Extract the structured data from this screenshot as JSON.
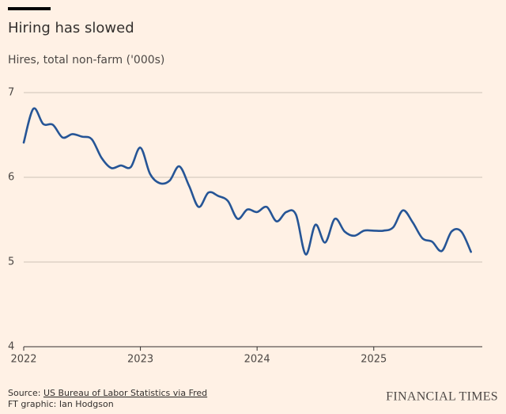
{
  "chart_data": {
    "type": "line",
    "title": "Hiring has slowed",
    "subtitle": "Hires, total non-farm ('000s)",
    "source_prefix": "Source: ",
    "source_link": "US Bureau of Labor Statistics via Fred",
    "credit": "FT graphic: Ian Hodgson",
    "brand": "FINANCIAL TIMES",
    "x": [
      2022,
      2022.083,
      2022.167,
      2022.25,
      2022.333,
      2022.417,
      2022.5,
      2022.583,
      2022.667,
      2022.75,
      2022.833,
      2022.917,
      2023,
      2023.083,
      2023.167,
      2023.25,
      2023.333,
      2023.417,
      2023.5,
      2023.583,
      2023.667,
      2023.75,
      2023.833,
      2023.917,
      2024,
      2024.083,
      2024.167,
      2024.25,
      2024.333,
      2024.417,
      2024.5,
      2024.583,
      2024.667,
      2024.75,
      2024.833,
      2024.917,
      2025,
      2025.083,
      2025.167,
      2025.25,
      2025.333,
      2025.417,
      2025.5,
      2025.583,
      2025.667,
      2025.75,
      2025.833
    ],
    "series": [
      {
        "name": "Hires",
        "color": "#265596",
        "values": [
          6.41,
          6.81,
          6.63,
          6.62,
          6.47,
          6.51,
          6.48,
          6.45,
          6.23,
          6.11,
          6.14,
          6.12,
          6.35,
          6.04,
          5.93,
          5.96,
          6.13,
          5.9,
          5.65,
          5.82,
          5.78,
          5.72,
          5.51,
          5.62,
          5.59,
          5.65,
          5.48,
          5.59,
          5.56,
          5.09,
          5.44,
          5.23,
          5.51,
          5.36,
          5.31,
          5.37,
          5.37,
          5.37,
          5.41,
          5.61,
          5.47,
          5.28,
          5.24,
          5.13,
          5.36,
          5.36,
          5.12
        ]
      }
    ],
    "xlim": [
      2022,
      2025.93
    ],
    "xticks": [
      2022,
      2023,
      2024,
      2025
    ],
    "ylim": [
      4,
      7
    ],
    "yticks": [
      4,
      5,
      6,
      7
    ],
    "grid": true
  }
}
